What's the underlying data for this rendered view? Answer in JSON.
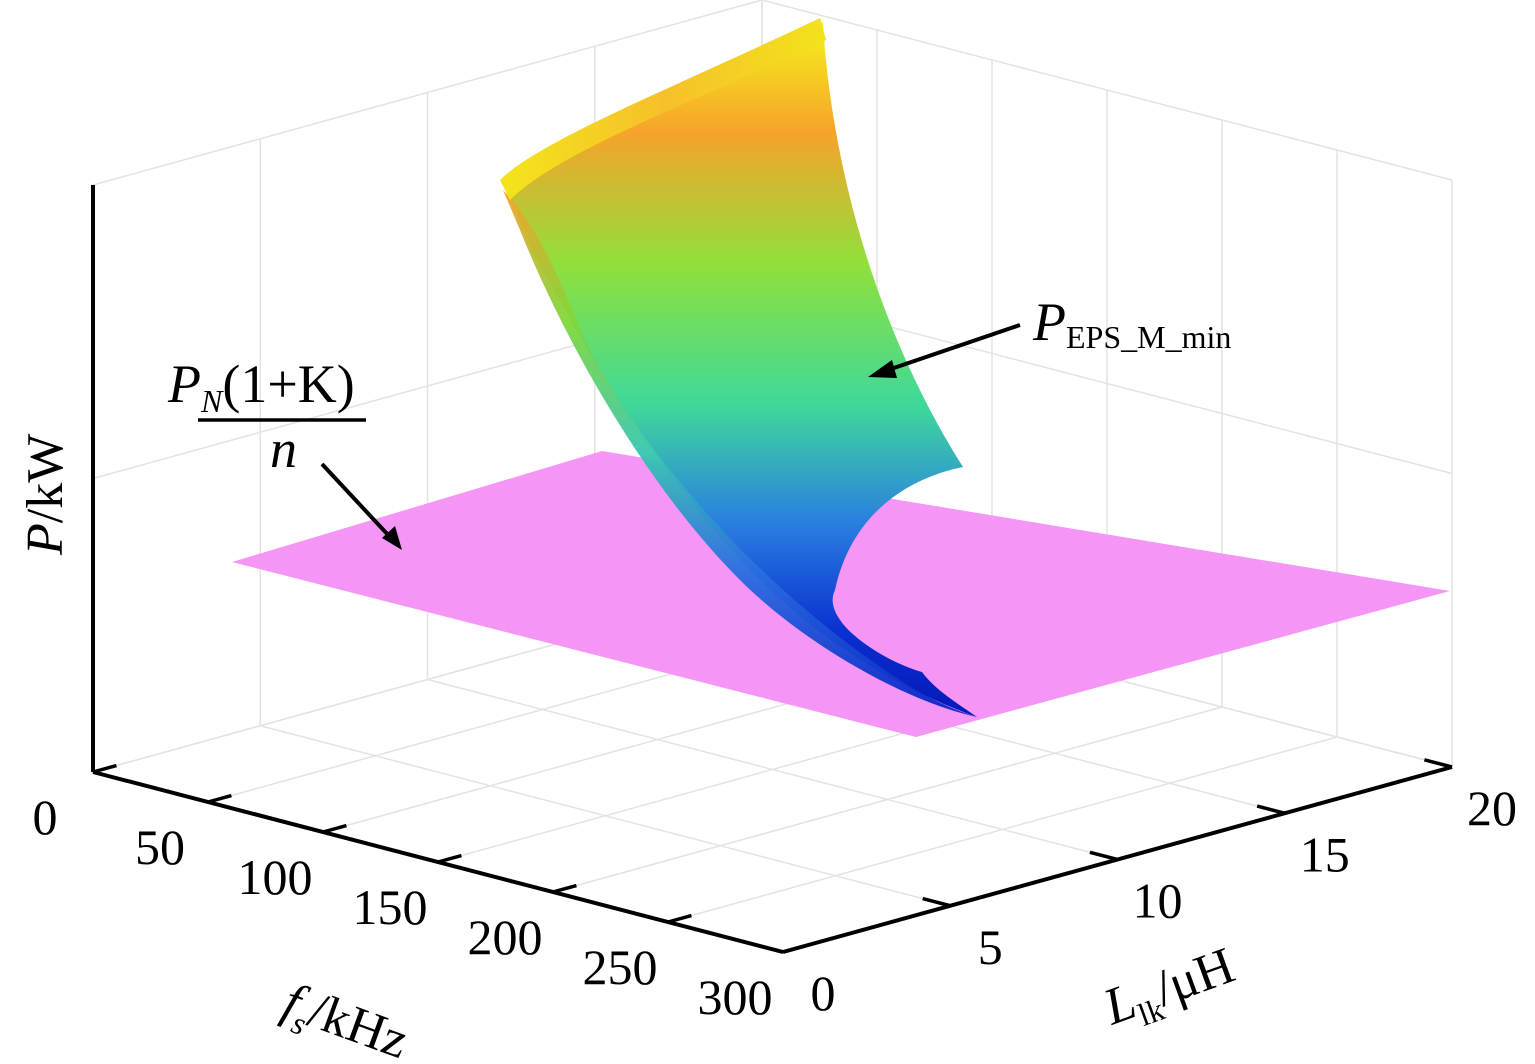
{
  "chart_data": {
    "type": "surface3d",
    "title": "",
    "xlabel": {
      "var": "f",
      "sub": "s",
      "unit": "/kHz"
    },
    "ylabel": {
      "var": "L",
      "sub": "lk",
      "unit": "/μH"
    },
    "zlabel": {
      "var": "P",
      "unit": "/kW"
    },
    "x_ticks": [
      "0",
      "50",
      "100",
      "150",
      "200",
      "250",
      "300"
    ],
    "y_ticks": [
      "0",
      "5",
      "10",
      "15",
      "20"
    ],
    "xlim": [
      0,
      300
    ],
    "ylim": [
      0,
      20
    ],
    "grid": true,
    "series": [
      {
        "name_main": "P",
        "name_sub": "EPS_M_min",
        "kind": "surface",
        "colormap": "jet"
      },
      {
        "name_main": "P",
        "name_sub": "N",
        "name_rest": "(1+K)",
        "name_denominator": "n",
        "kind": "plane",
        "color": "#f595f5"
      }
    ]
  },
  "colors": {
    "axis": "#000000",
    "grid": "#e3e3e3",
    "plane": "#f595f5"
  }
}
